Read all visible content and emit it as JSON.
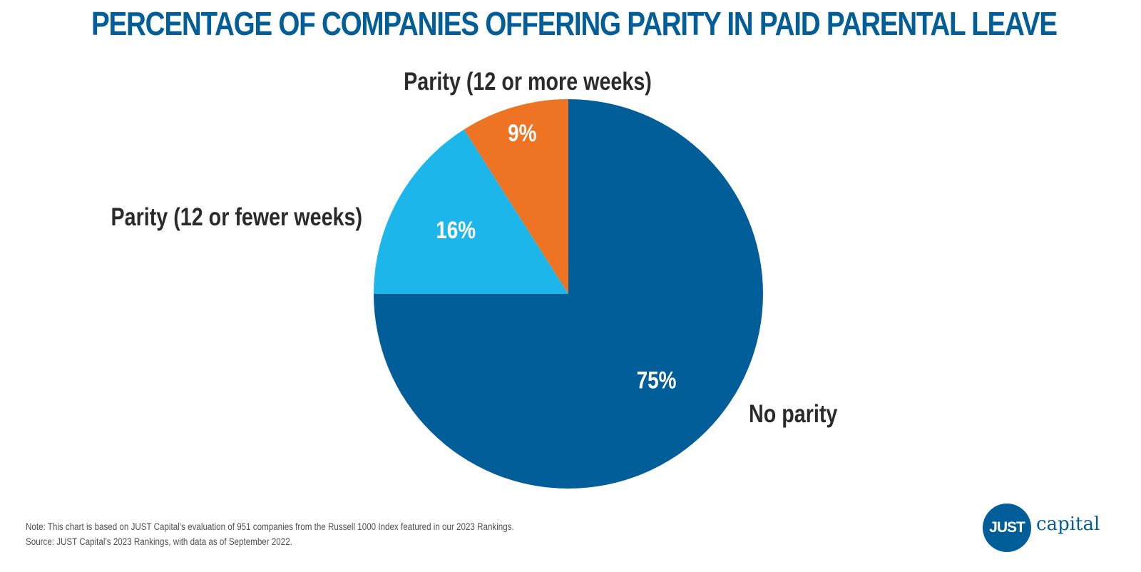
{
  "chart_data": {
    "type": "pie",
    "title": "PERCENTAGE OF COMPANIES OFFERING PARITY IN PAID PARENTAL LEAVE",
    "slices": [
      {
        "label": "No parity",
        "value": 75,
        "value_label": "75%",
        "color": "#025E98"
      },
      {
        "label": "Parity (12 or fewer weeks)",
        "value": 16,
        "value_label": "16%",
        "color": "#1DB6EB"
      },
      {
        "label": "Parity (12 or more weeks)",
        "value": 9,
        "value_label": "9%",
        "color": "#EE7423"
      }
    ],
    "start_angle": "12 o'clock",
    "direction": "clockwise"
  },
  "colors": {
    "title": "#025E98",
    "label_text": "#2B2B2B",
    "value_text": "#FFFFFF",
    "logo": "#025E98"
  },
  "footer": {
    "note": "Note: This chart is based on JUST Capital’s evaluation of 951 companies from the Russell 1000 Index featured in our 2023 Rankings.",
    "source": "Source: JUST Capital’s 2023 Rankings, with data as of September 2022."
  },
  "logo": {
    "badge_text": "JUST",
    "wordmark": "capital"
  }
}
